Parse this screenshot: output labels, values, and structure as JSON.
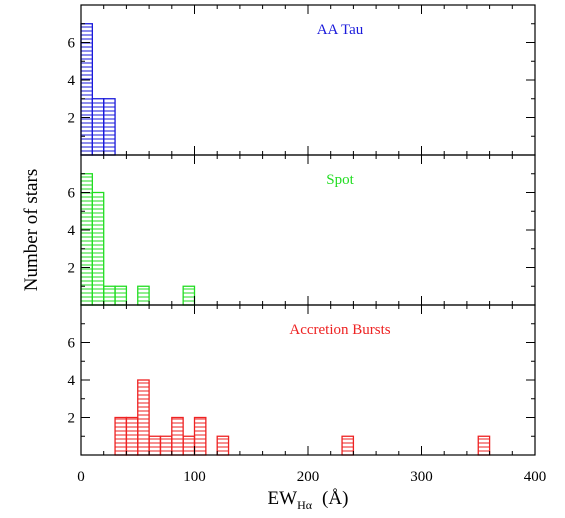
{
  "chart_data": {
    "type": "bar",
    "xlabel": "EW",
    "xlabel_subscript": "Hα",
    "xlabel_unit": "(Å)",
    "ylabel": "Number of stars",
    "xlim": [
      0,
      400
    ],
    "x_ticks": [
      "0",
      "100",
      "200",
      "300",
      "400"
    ],
    "ylim": [
      0,
      8
    ],
    "y_ticks": [
      "2",
      "4",
      "6"
    ],
    "bin_width": 10,
    "grid": false,
    "panels": [
      {
        "name": "AA Tau",
        "color": "#1a1adb",
        "bins": [
          {
            "x": 0,
            "count": 7
          },
          {
            "x": 10,
            "count": 3
          },
          {
            "x": 20,
            "count": 3
          }
        ]
      },
      {
        "name": "Spot",
        "color": "#22dd22",
        "bins": [
          {
            "x": 0,
            "count": 7
          },
          {
            "x": 10,
            "count": 6
          },
          {
            "x": 20,
            "count": 1
          },
          {
            "x": 30,
            "count": 1
          },
          {
            "x": 50,
            "count": 1
          },
          {
            "x": 90,
            "count": 1
          }
        ]
      },
      {
        "name": "Accretion Bursts",
        "color": "#ee2222",
        "bins": [
          {
            "x": 30,
            "count": 2
          },
          {
            "x": 40,
            "count": 2
          },
          {
            "x": 50,
            "count": 4
          },
          {
            "x": 60,
            "count": 1
          },
          {
            "x": 70,
            "count": 1
          },
          {
            "x": 80,
            "count": 2
          },
          {
            "x": 90,
            "count": 1
          },
          {
            "x": 100,
            "count": 2
          },
          {
            "x": 120,
            "count": 1
          },
          {
            "x": 230,
            "count": 1
          },
          {
            "x": 350,
            "count": 1
          }
        ]
      }
    ]
  }
}
